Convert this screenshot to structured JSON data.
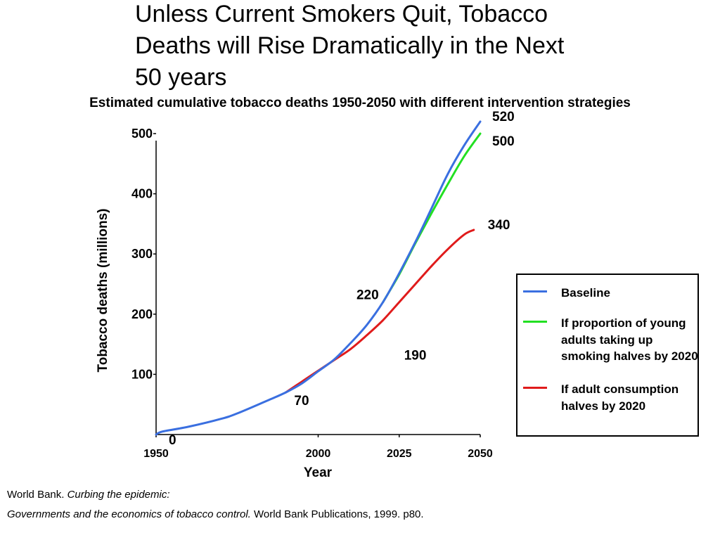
{
  "slide_title": "Unless Current Smokers Quit, Tobacco\nDeaths will Rise Dramatically in the Next\n50 years",
  "chart_data": {
    "type": "line",
    "title": "Estimated cumulative tobacco deaths 1950-2050 with different intervention strategies",
    "xlabel": "Year",
    "ylabel": "Tobacco deaths (millions)",
    "xlim": [
      1950,
      2050
    ],
    "ylim": [
      0,
      500
    ],
    "xticks": [
      1950,
      2000,
      2025,
      2050
    ],
    "yticks": [
      100,
      200,
      300,
      400,
      500
    ],
    "grid": false,
    "legend_position": "right",
    "series": [
      {
        "name": "Baseline",
        "color": "#3a6fe0",
        "x": [
          1950,
          1952,
          1960,
          1970,
          1975,
          1985,
          1990,
          1995,
          2000,
          2005,
          2010,
          2015,
          2020,
          2025,
          2030,
          2035,
          2040,
          2045,
          2050
        ],
        "y": [
          0,
          5,
          13,
          26,
          35,
          58,
          70,
          85,
          105,
          125,
          152,
          182,
          220,
          268,
          320,
          376,
          433,
          480,
          520
        ]
      },
      {
        "name": "If proportion of young adults taking up smoking halves by 2020",
        "color": "#22e022",
        "x": [
          2020,
          2025,
          2030,
          2035,
          2040,
          2045,
          2050
        ],
        "y": [
          220,
          266,
          318,
          368,
          416,
          462,
          500
        ]
      },
      {
        "name": "If adult consumption halves by 2020",
        "color": "#e01b1b",
        "x": [
          1990,
          1995,
          2000,
          2005,
          2010,
          2015,
          2020,
          2025,
          2030,
          2035,
          2040,
          2045,
          2048
        ],
        "y": [
          70,
          88,
          106,
          124,
          142,
          165,
          190,
          220,
          250,
          280,
          308,
          332,
          340
        ]
      }
    ],
    "annotations": [
      {
        "text": "0",
        "x": 1950,
        "y": 0
      },
      {
        "text": "70",
        "x": 1990,
        "y": 70
      },
      {
        "text": "220",
        "x": 2020,
        "y": 220
      },
      {
        "text": "190",
        "x": 2020,
        "y": 190
      },
      {
        "text": "340",
        "x": 2048,
        "y": 340
      },
      {
        "text": "500",
        "x": 2050,
        "y": 500
      },
      {
        "text": "520",
        "x": 2050,
        "y": 520
      }
    ]
  },
  "legend": {
    "items": [
      {
        "label": "Baseline",
        "color": "#3a6fe0"
      },
      {
        "label": "If proportion of young adults taking up smoking halves by 2020",
        "color": "#22e022"
      },
      {
        "label": "If adult consumption halves by 2020",
        "color": "#e01b1b"
      }
    ]
  },
  "source": {
    "line1_plain": "World Bank. ",
    "line1_italic": "Curbing the epidemic:",
    "line2_italic": "Governments and the economics of tobacco control.",
    "line2_plain": " World Bank Publications, 1999. p80."
  }
}
